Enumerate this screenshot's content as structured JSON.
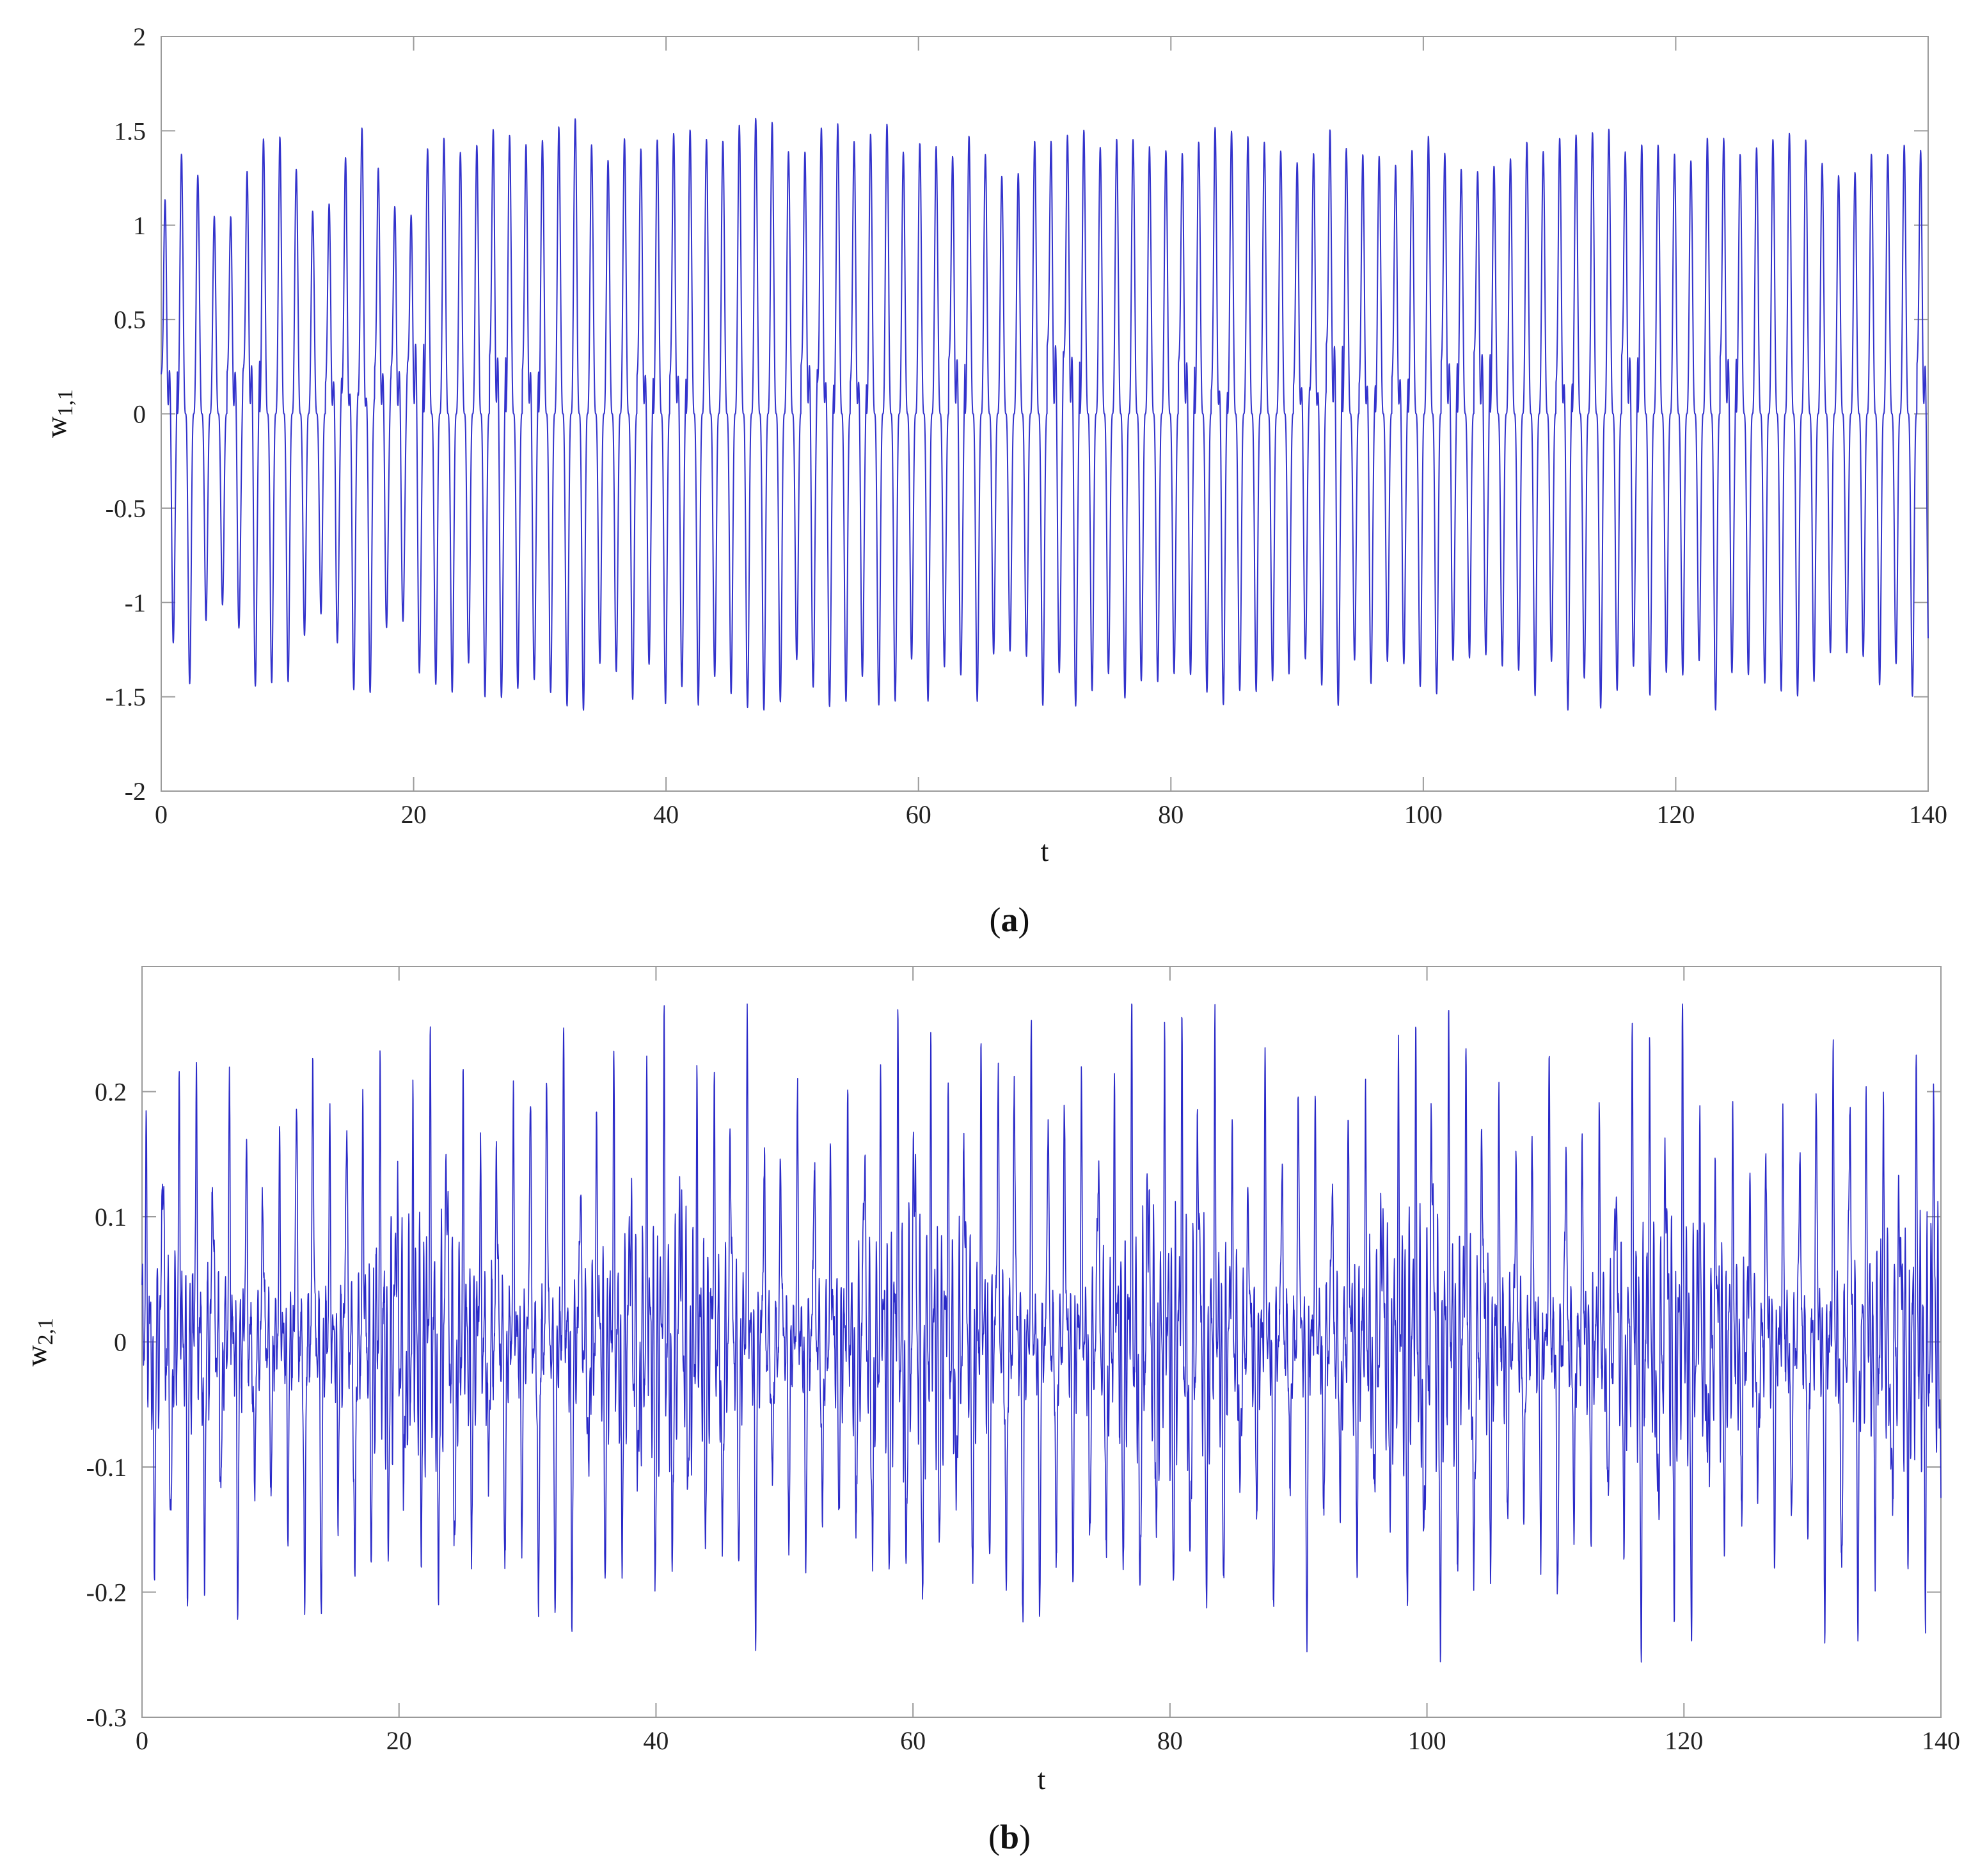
{
  "chart_data": [
    {
      "id": "a",
      "type": "line",
      "caption_open": "(",
      "caption_letter": "a",
      "caption_close": ")",
      "xlabel": "t",
      "ylabel_main": "w",
      "ylabel_sub": "1,1",
      "xlim": [
        0,
        140
      ],
      "ylim": [
        -2,
        2
      ],
      "x_ticks": [
        0,
        20,
        40,
        60,
        80,
        100,
        120,
        140
      ],
      "y_ticks": [
        -2,
        -1.5,
        -1,
        -0.5,
        0,
        0.5,
        1,
        1.5,
        2
      ],
      "line_color": "#3333cc",
      "series": [
        {
          "t_range": [
            0,
            140
          ],
          "signal": "chaotic oscillation, amplitude approx 1.35 to 1.6, period approx 1.3",
          "envelope_peaks": [
            {
              "t": 0.7,
              "v": 1.2
            },
            {
              "t": 1.3,
              "v": -1.33
            },
            {
              "t": 2.0,
              "v": 0.9
            },
            {
              "t": 3.5,
              "v": 1.27
            },
            {
              "t": 5.1,
              "v": 1.37
            },
            {
              "t": 7.0,
              "v": 1.38
            },
            {
              "t": 11.2,
              "v": 1.34
            },
            {
              "t": 15.8,
              "v": 0.92
            },
            {
              "t": 25.3,
              "v": 1.45
            },
            {
              "t": 32.6,
              "v": 1.45
            },
            {
              "t": 46.6,
              "v": 1.53
            },
            {
              "t": 44.6,
              "v": -1.55
            },
            {
              "t": 82.0,
              "v": 1.6
            },
            {
              "t": 100.0,
              "v": -1.6
            },
            {
              "t": 131.6,
              "v": 1.57
            },
            {
              "t": 131.0,
              "v": -1.58
            },
            {
              "t": 138.6,
              "v": -1.58
            }
          ]
        }
      ]
    },
    {
      "id": "b",
      "type": "line",
      "caption_open": "(",
      "caption_letter": "b",
      "caption_close": ")",
      "xlabel": "t",
      "ylabel_main": "w",
      "ylabel_sub": "2,1",
      "xlim": [
        0,
        140
      ],
      "ylim": [
        -0.3,
        0.3
      ],
      "x_ticks": [
        0,
        20,
        40,
        60,
        80,
        100,
        120,
        140
      ],
      "y_ticks": [
        -0.3,
        -0.2,
        -0.1,
        0,
        0.1,
        0.2
      ],
      "line_color": "#2a2ac8",
      "series": [
        {
          "t_range": [
            0,
            140
          ],
          "signal": "dense chaotic oscillation, amplitude approx 0.15 to 0.27",
          "envelope_peaks": [
            {
              "t": 0.6,
              "v": 0.115
            },
            {
              "t": 2.4,
              "v": -0.15
            },
            {
              "t": 4.1,
              "v": 0.15
            },
            {
              "t": 11.0,
              "v": 0.15
            },
            {
              "t": 20.6,
              "v": 0.17
            },
            {
              "t": 44.4,
              "v": 0.235
            },
            {
              "t": 44.9,
              "v": -0.24
            },
            {
              "t": 66.1,
              "v": 0.23
            },
            {
              "t": 81.1,
              "v": 0.27
            },
            {
              "t": 83.1,
              "v": -0.265
            },
            {
              "t": 100.0,
              "v": -0.245
            },
            {
              "t": 139.0,
              "v": 0.245
            },
            {
              "t": 139.5,
              "v": -0.235
            }
          ]
        }
      ]
    }
  ]
}
